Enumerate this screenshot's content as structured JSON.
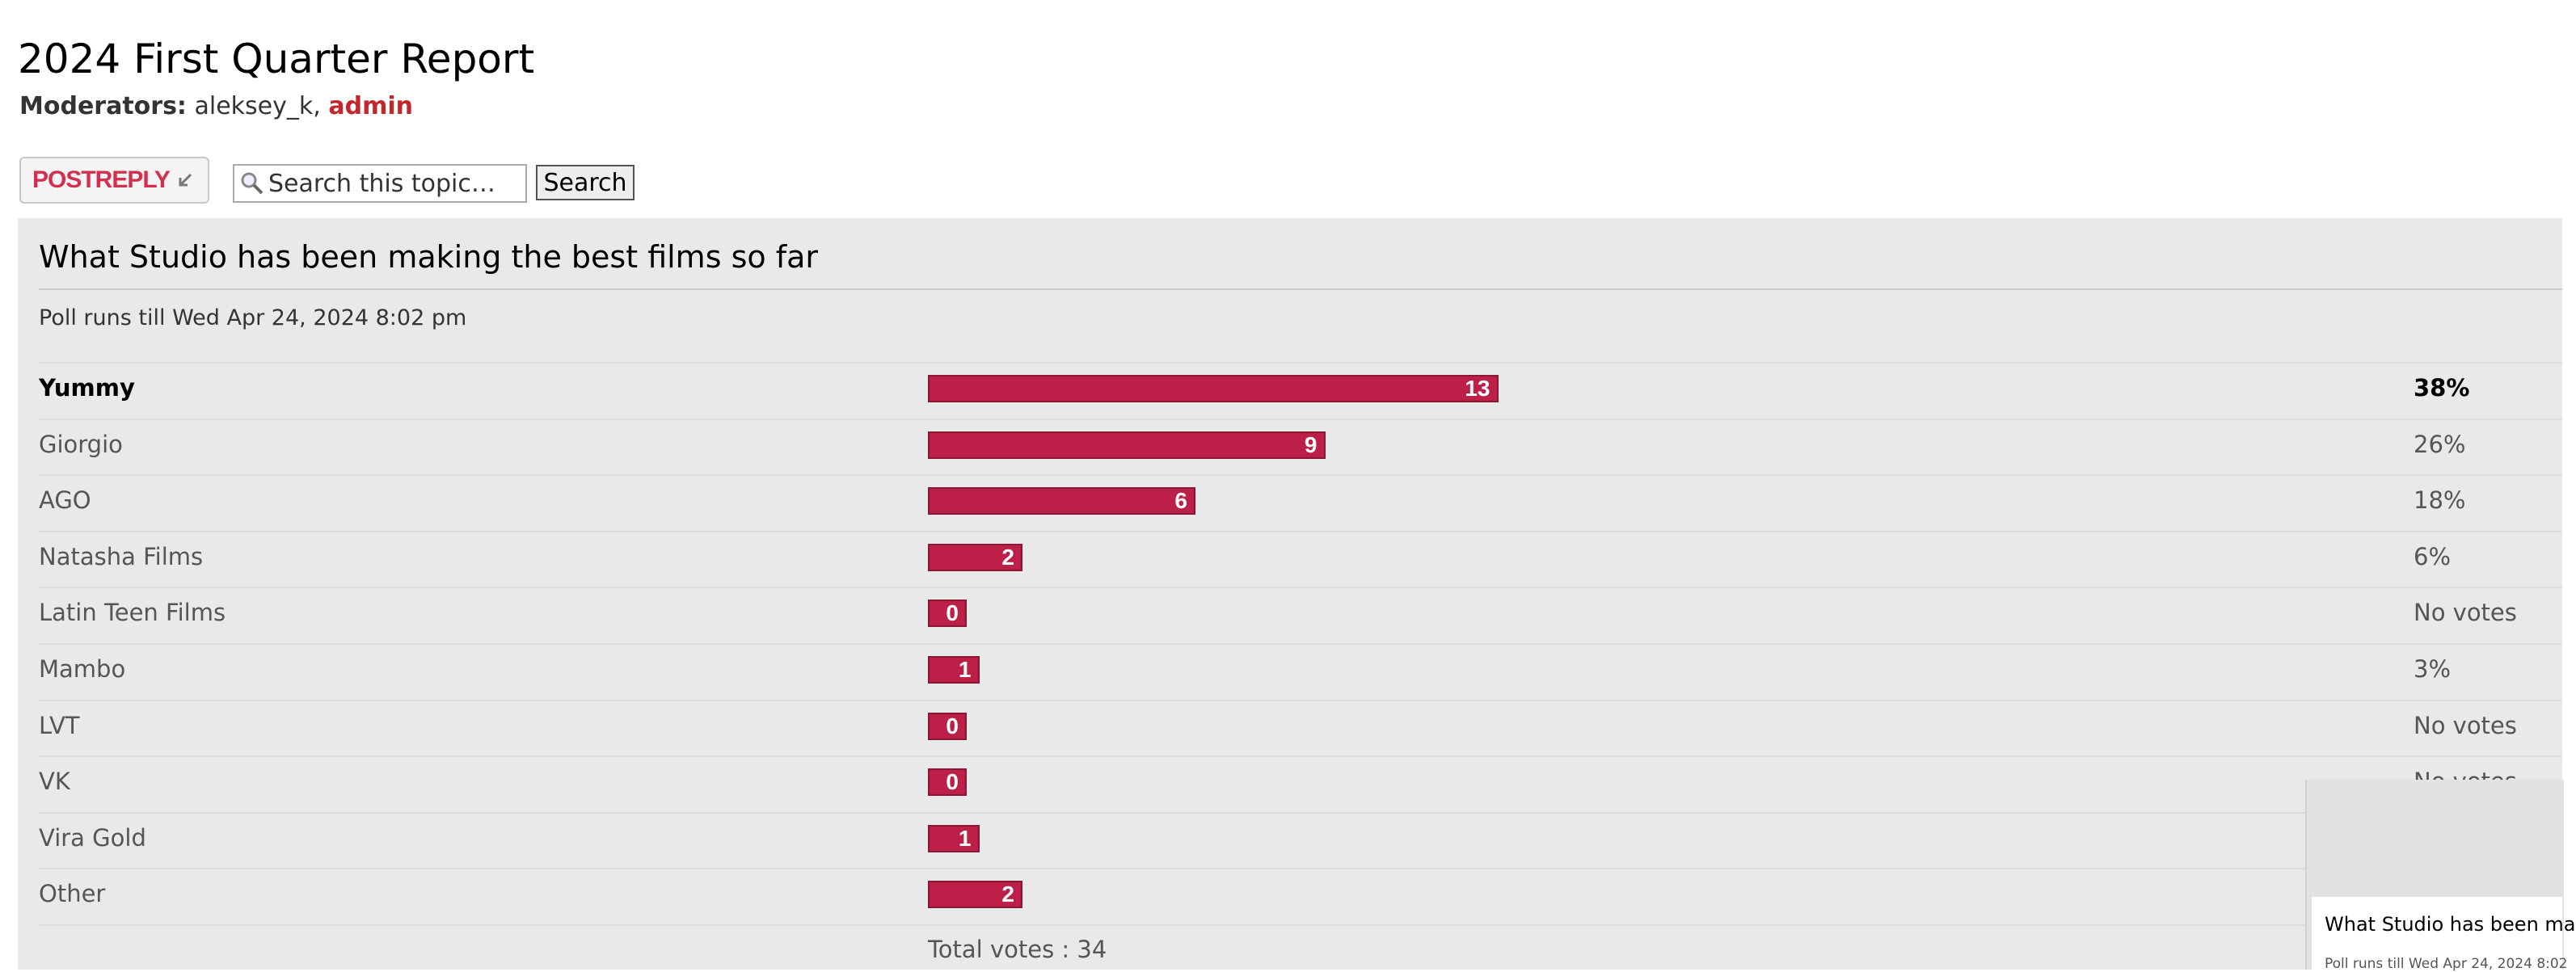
{
  "header": {
    "title": "2024 First Quarter Report",
    "moderators_label": "Moderators:",
    "moderators": [
      "aleksey_k,",
      "admin"
    ]
  },
  "toolbar": {
    "post_reply": "POSTREPLY",
    "search_placeholder": "Search this topic…",
    "search_button": "Search"
  },
  "poll": {
    "question": "What Studio has been making the best films so far",
    "ends": "Poll runs till Wed Apr 24, 2024 8:02 pm",
    "options": [
      {
        "label": "Yummy",
        "votes": 13,
        "percent": "38%",
        "voted": true
      },
      {
        "label": "Giorgio",
        "votes": 9,
        "percent": "26%",
        "voted": false
      },
      {
        "label": "AGO",
        "votes": 6,
        "percent": "18%",
        "voted": false
      },
      {
        "label": "Natasha Films",
        "votes": 2,
        "percent": "6%",
        "voted": false
      },
      {
        "label": "Latin Teen Films",
        "votes": 0,
        "percent": "No votes",
        "voted": false
      },
      {
        "label": "Mambo",
        "votes": 1,
        "percent": "3%",
        "voted": false
      },
      {
        "label": "LVT",
        "votes": 0,
        "percent": "No votes",
        "voted": false
      },
      {
        "label": "VK",
        "votes": 0,
        "percent": "No votes",
        "voted": false
      },
      {
        "label": "Vira Gold",
        "votes": 1,
        "percent": null,
        "voted": false
      },
      {
        "label": "Other",
        "votes": 2,
        "percent": null,
        "voted": false
      }
    ],
    "total_votes_label": "Total votes :",
    "total_votes": 34,
    "bar_color": "#bc2048"
  },
  "overlay": {
    "title": "What Studio has been ma",
    "ends": "Poll runs till Wed Apr 24, 2024 8:02"
  }
}
